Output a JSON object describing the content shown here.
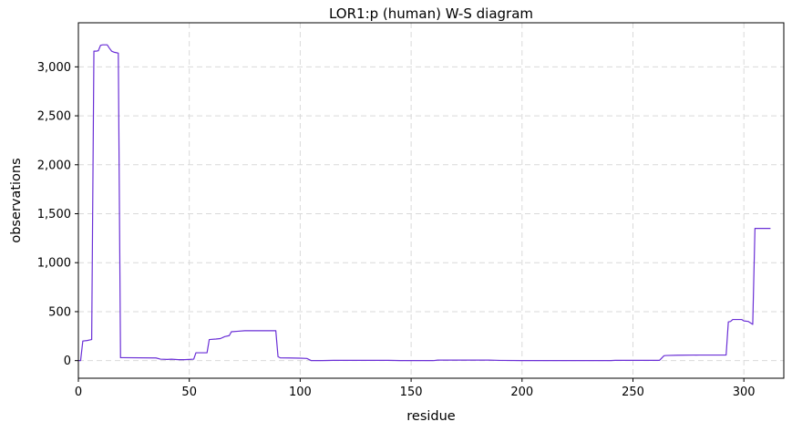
{
  "chart_data": {
    "type": "line",
    "title": "LOR1:p (human) W-S diagram",
    "xlabel": "residue",
    "ylabel": "observations",
    "xlim": [
      0,
      318
    ],
    "ylim": [
      -180,
      3450
    ],
    "xticks": [
      0,
      50,
      100,
      150,
      200,
      250,
      300
    ],
    "xtick_labels": [
      "0",
      "50",
      "100",
      "150",
      "200",
      "250",
      "300"
    ],
    "yticks": [
      0,
      500,
      1000,
      1500,
      2000,
      2500,
      3000
    ],
    "ytick_labels": [
      "0",
      "500",
      "1,000",
      "1,500",
      "2,000",
      "2,500",
      "3,000"
    ],
    "grid": true,
    "line_color": "#6a2fd6",
    "series": [
      {
        "name": "",
        "points": [
          [
            0,
            0
          ],
          [
            1,
            0
          ],
          [
            2,
            200
          ],
          [
            4,
            205
          ],
          [
            5,
            210
          ],
          [
            6,
            215
          ],
          [
            7,
            3160
          ],
          [
            8,
            3160
          ],
          [
            9,
            3165
          ],
          [
            10,
            3220
          ],
          [
            11,
            3225
          ],
          [
            12,
            3225
          ],
          [
            13,
            3225
          ],
          [
            14,
            3190
          ],
          [
            15,
            3160
          ],
          [
            16,
            3150
          ],
          [
            17,
            3145
          ],
          [
            18,
            3140
          ],
          [
            19,
            30
          ],
          [
            20,
            30
          ],
          [
            35,
            27
          ],
          [
            37,
            15
          ],
          [
            40,
            12
          ],
          [
            42,
            14
          ],
          [
            45,
            10
          ],
          [
            48,
            10
          ],
          [
            50,
            12
          ],
          [
            52,
            15
          ],
          [
            53,
            80
          ],
          [
            56,
            80
          ],
          [
            58,
            80
          ],
          [
            59,
            215
          ],
          [
            62,
            220
          ],
          [
            64,
            225
          ],
          [
            66,
            245
          ],
          [
            68,
            255
          ],
          [
            69,
            295
          ],
          [
            72,
            300
          ],
          [
            75,
            305
          ],
          [
            80,
            305
          ],
          [
            85,
            305
          ],
          [
            89,
            305
          ],
          [
            90,
            40
          ],
          [
            91,
            28
          ],
          [
            95,
            27
          ],
          [
            100,
            25
          ],
          [
            103,
            22
          ],
          [
            105,
            0
          ],
          [
            110,
            0
          ],
          [
            115,
            3
          ],
          [
            140,
            3
          ],
          [
            145,
            0
          ],
          [
            160,
            0
          ],
          [
            162,
            5
          ],
          [
            185,
            5
          ],
          [
            190,
            2
          ],
          [
            200,
            0
          ],
          [
            240,
            0
          ],
          [
            242,
            3
          ],
          [
            262,
            3
          ],
          [
            264,
            50
          ],
          [
            265,
            52
          ],
          [
            270,
            55
          ],
          [
            280,
            57
          ],
          [
            292,
            57
          ],
          [
            293,
            395
          ],
          [
            294,
            400
          ],
          [
            295,
            420
          ],
          [
            299,
            420
          ],
          [
            300,
            405
          ],
          [
            302,
            400
          ],
          [
            304,
            370
          ],
          [
            305,
            1350
          ],
          [
            307,
            1350
          ],
          [
            312,
            1350
          ]
        ]
      }
    ]
  }
}
